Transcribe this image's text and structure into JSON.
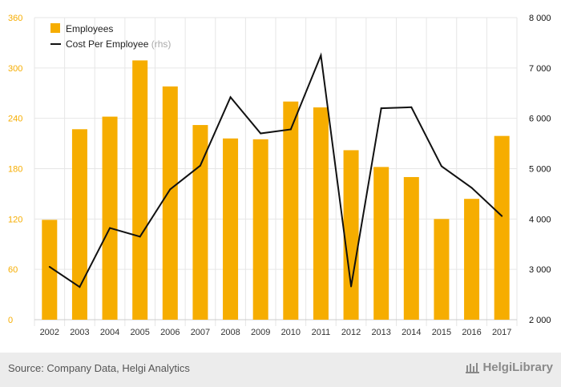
{
  "chart_data": {
    "type": "bar+line",
    "categories": [
      "2002",
      "2003",
      "2004",
      "2005",
      "2006",
      "2007",
      "2008",
      "2009",
      "2010",
      "2011",
      "2012",
      "2013",
      "2014",
      "2015",
      "2016",
      "2017"
    ],
    "series": [
      {
        "name": "Employees",
        "type": "bar",
        "axis": "left",
        "color": "#f6ad00",
        "values": [
          119,
          227,
          242,
          309,
          278,
          232,
          216,
          215,
          260,
          253,
          202,
          182,
          170,
          120,
          144,
          219
        ]
      },
      {
        "name": "Cost Per Employee",
        "name_suffix": "(rhs)",
        "type": "line",
        "axis": "right",
        "color": "#111111",
        "values": [
          3050,
          2650,
          3820,
          3650,
          4590,
          5060,
          6420,
          5700,
          5780,
          7250,
          2660,
          6200,
          6220,
          5050,
          4620,
          4060
        ]
      }
    ],
    "y_left": {
      "min": 0,
      "max": 360,
      "ticks": [
        "0",
        "60",
        "120",
        "180",
        "240",
        "300",
        "360"
      ],
      "tick_color": "#f6ad00"
    },
    "y_right": {
      "min": 2000,
      "max": 8000,
      "ticks": [
        "2 000",
        "3 000",
        "4 000",
        "5 000",
        "6 000",
        "7 000",
        "8 000"
      ],
      "tick_color": "#111111"
    },
    "grid": true,
    "legend_position": "top-left"
  },
  "footer": {
    "source": "Source: Company Data, Helgi Analytics",
    "brand": "HelgiLibrary"
  }
}
